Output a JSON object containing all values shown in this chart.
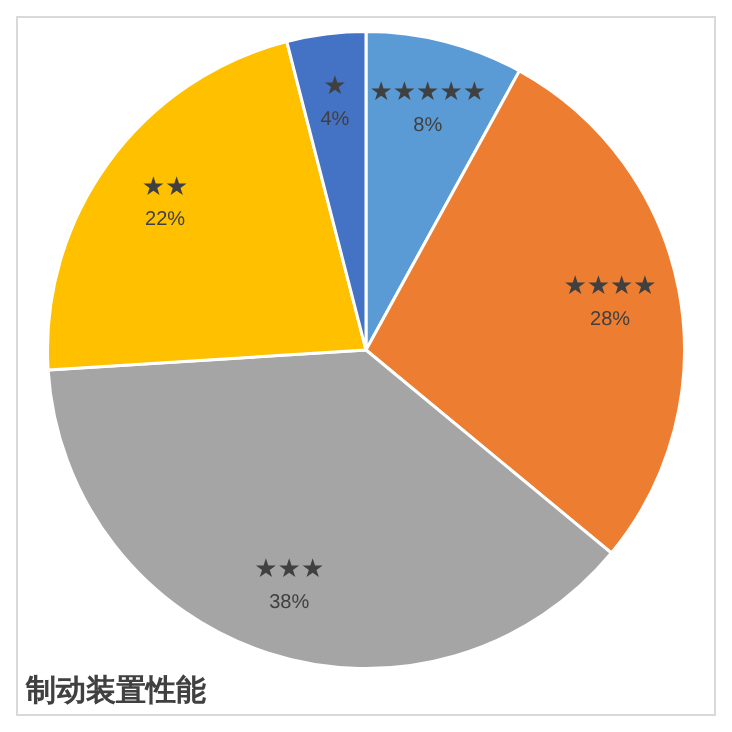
{
  "chart_data": {
    "type": "pie",
    "title": "制动装置性能",
    "categories": [
      "★★★★★",
      "★★★★",
      "★★★",
      "★★",
      "★"
    ],
    "values": [
      8,
      28,
      38,
      22,
      4
    ],
    "value_labels": [
      "8%",
      "28%",
      "38%",
      "22%",
      "4%"
    ],
    "colors": [
      "#5b9bd5",
      "#ed7d31",
      "#a5a5a5",
      "#ffc000",
      "#4472c4"
    ],
    "legend": false
  }
}
